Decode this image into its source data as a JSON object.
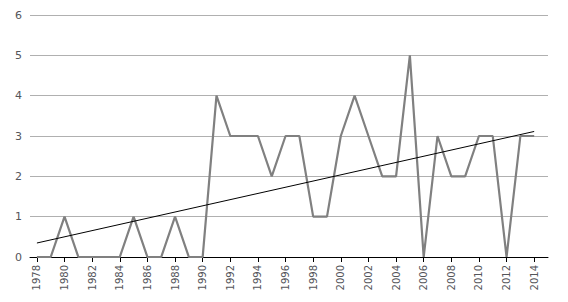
{
  "chart_data": {
    "type": "line",
    "x": [
      1978,
      1979,
      1980,
      1981,
      1982,
      1983,
      1984,
      1985,
      1986,
      1987,
      1988,
      1989,
      1990,
      1991,
      1992,
      1993,
      1994,
      1995,
      1996,
      1997,
      1998,
      1999,
      2000,
      2001,
      2002,
      2003,
      2004,
      2005,
      2006,
      2007,
      2008,
      2009,
      2010,
      2011,
      2012,
      2013,
      2014
    ],
    "series": [
      {
        "type": "line",
        "color": "#808080",
        "values": [
          0,
          0,
          1,
          0,
          0,
          0,
          0,
          1,
          0,
          0,
          1,
          0,
          0,
          4,
          3,
          3,
          3,
          2,
          3,
          3,
          1,
          1,
          3,
          4,
          3,
          2,
          2,
          5,
          0,
          3,
          2,
          2,
          3,
          3,
          0,
          3,
          3
        ]
      },
      {
        "type": "line",
        "color": "#000000",
        "x": [
          1978,
          2014
        ],
        "values": [
          0.347084,
          3.112376
        ]
      }
    ],
    "xlim": [
      1977.5,
      2015
    ],
    "xticks": [
      1978,
      1980,
      1982,
      1984,
      1986,
      1988,
      1990,
      1992,
      1994,
      1996,
      1998,
      2000,
      2002,
      2004,
      2006,
      2008,
      2010,
      2012,
      2014
    ],
    "ylim": [
      0,
      6
    ],
    "yticks": [
      0,
      1,
      2,
      3,
      4,
      5,
      6
    ],
    "grid": true
  }
}
